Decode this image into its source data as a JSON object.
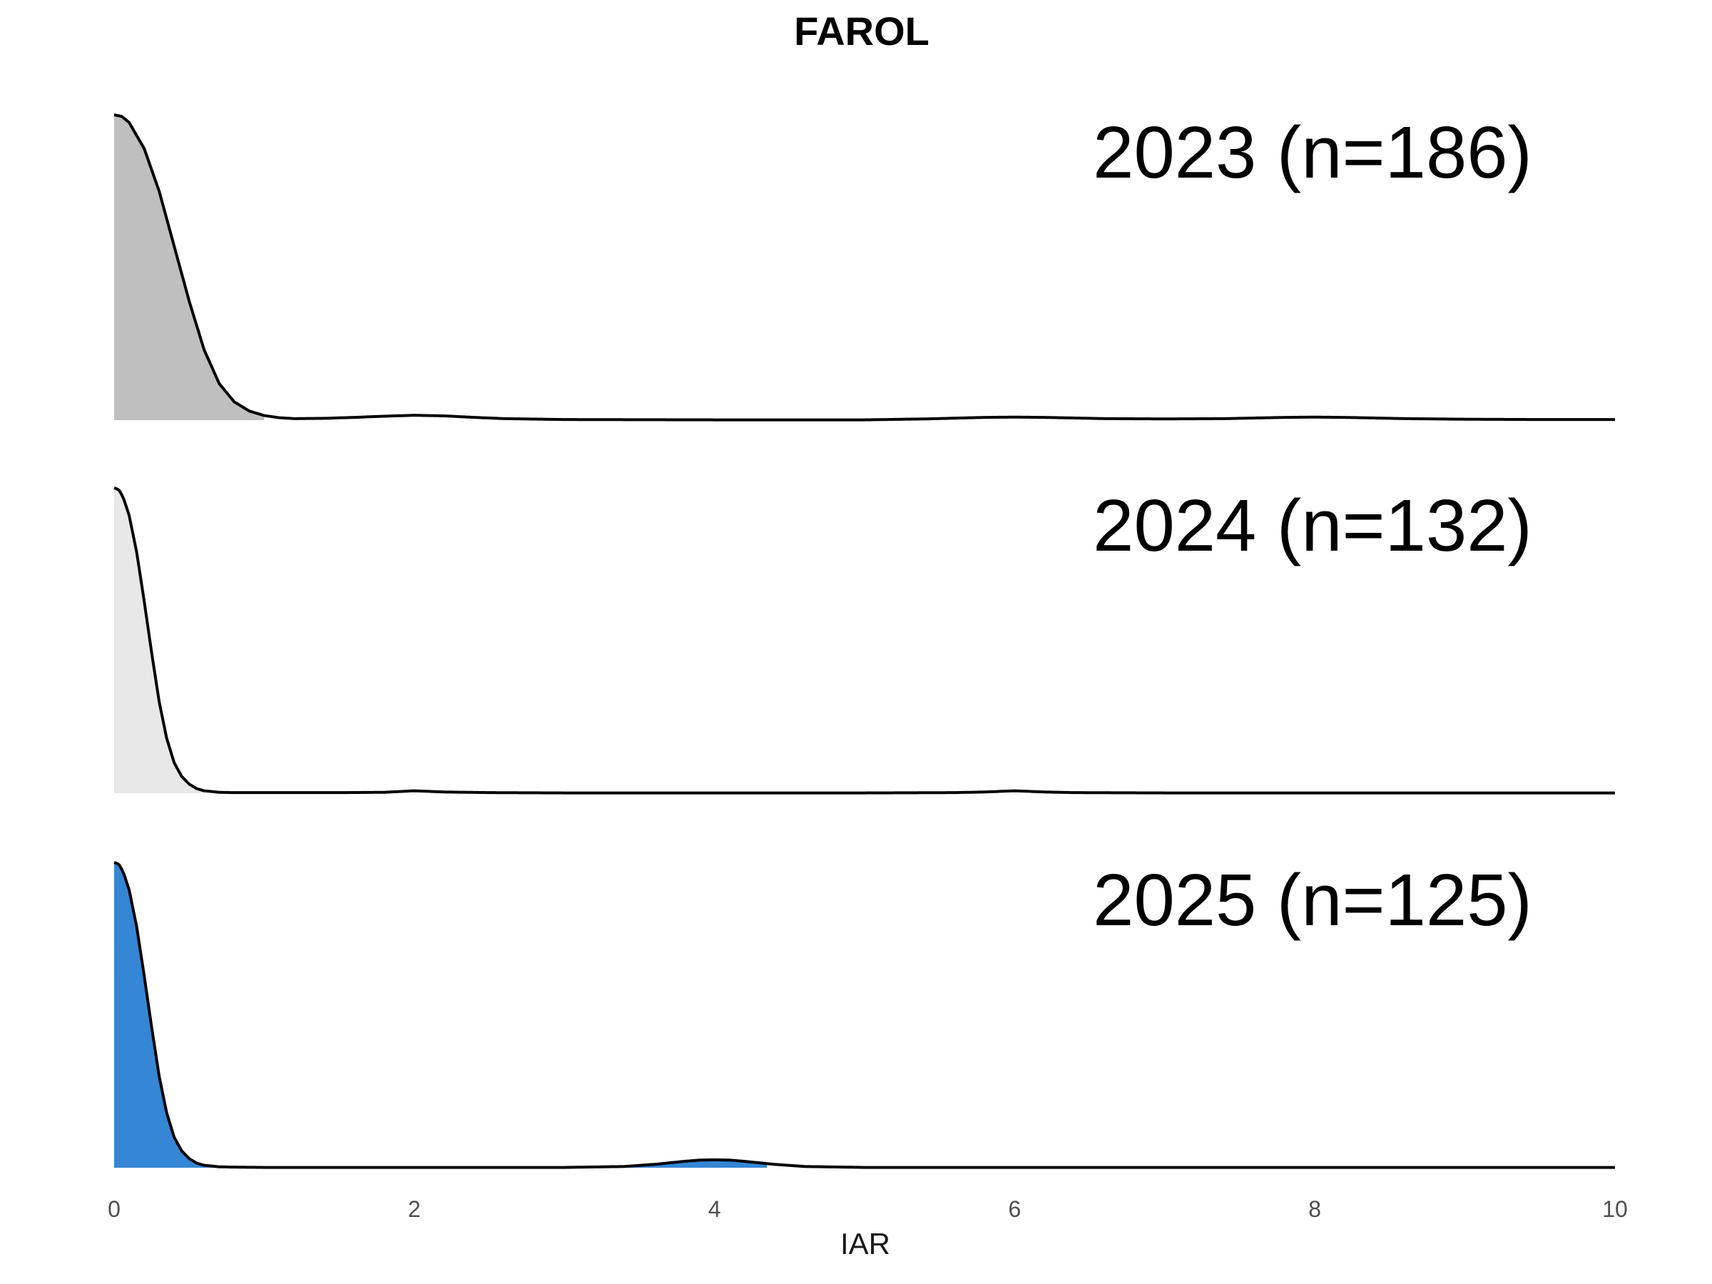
{
  "chart_data": {
    "type": "area",
    "subtype": "ridgeline-density",
    "title": "FAROL",
    "xlabel": "IAR",
    "ylabel": "",
    "xlim": [
      0,
      10
    ],
    "xticks": [
      0,
      2,
      4,
      6,
      8,
      10
    ],
    "grid": false,
    "legend": "none",
    "series": [
      {
        "name": "2023 (n=186)",
        "color": "#bfbfbf",
        "fill_to": 1.0,
        "x": [
          0,
          0.05,
          0.1,
          0.2,
          0.3,
          0.4,
          0.5,
          0.6,
          0.7,
          0.8,
          0.9,
          1.0,
          1.1,
          1.2,
          1.4,
          1.6,
          1.8,
          2.0,
          2.2,
          2.4,
          2.6,
          3.0,
          4.0,
          5.0,
          5.4,
          5.8,
          6.0,
          6.2,
          6.6,
          7.0,
          7.4,
          7.8,
          8.0,
          8.2,
          8.6,
          9.0,
          9.5,
          10.0
        ],
        "y": [
          1.0,
          0.995,
          0.975,
          0.89,
          0.75,
          0.57,
          0.39,
          0.23,
          0.12,
          0.06,
          0.03,
          0.015,
          0.008,
          0.005,
          0.006,
          0.009,
          0.013,
          0.016,
          0.014,
          0.009,
          0.005,
          0.002,
          0.001,
          0.001,
          0.004,
          0.009,
          0.01,
          0.009,
          0.005,
          0.004,
          0.005,
          0.009,
          0.01,
          0.009,
          0.005,
          0.003,
          0.002,
          0.002
        ]
      },
      {
        "name": "2024 (n=132)",
        "color": "#e8e8e8",
        "fill_to": 0.6,
        "x": [
          0,
          0.03,
          0.06,
          0.1,
          0.15,
          0.2,
          0.25,
          0.3,
          0.35,
          0.4,
          0.45,
          0.5,
          0.55,
          0.6,
          0.7,
          0.8,
          1.0,
          1.5,
          1.8,
          2.0,
          2.2,
          2.5,
          3.0,
          4.0,
          5.0,
          5.6,
          5.8,
          6.0,
          6.2,
          6.4,
          7.0,
          8.0,
          9.0,
          10.0
        ],
        "y": [
          1.0,
          0.995,
          0.97,
          0.91,
          0.79,
          0.63,
          0.46,
          0.3,
          0.18,
          0.1,
          0.055,
          0.03,
          0.015,
          0.008,
          0.003,
          0.002,
          0.002,
          0.002,
          0.003,
          0.008,
          0.004,
          0.002,
          0.001,
          0.001,
          0.001,
          0.002,
          0.004,
          0.008,
          0.004,
          0.002,
          0.001,
          0.001,
          0.001,
          0.001
        ]
      },
      {
        "name": "2025 (n=125)",
        "color": "#3586d4",
        "fill_to": 4.35,
        "x": [
          0,
          0.03,
          0.06,
          0.1,
          0.15,
          0.2,
          0.25,
          0.3,
          0.35,
          0.4,
          0.45,
          0.5,
          0.55,
          0.6,
          0.7,
          0.8,
          1.0,
          2.0,
          3.0,
          3.4,
          3.6,
          3.8,
          3.9,
          4.0,
          4.1,
          4.2,
          4.4,
          4.6,
          5.0,
          6.0,
          8.0,
          10.0
        ],
        "y": [
          1.0,
          0.995,
          0.97,
          0.91,
          0.79,
          0.63,
          0.46,
          0.3,
          0.18,
          0.1,
          0.055,
          0.03,
          0.015,
          0.008,
          0.003,
          0.002,
          0.001,
          0.001,
          0.001,
          0.004,
          0.011,
          0.021,
          0.025,
          0.026,
          0.025,
          0.021,
          0.011,
          0.004,
          0.001,
          0.001,
          0.001,
          0.001
        ]
      }
    ]
  }
}
